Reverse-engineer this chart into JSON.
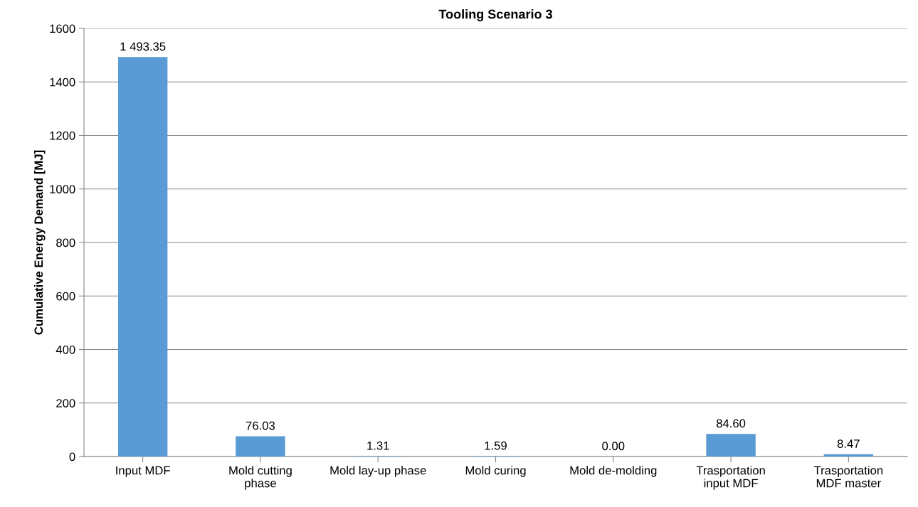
{
  "chart_data": {
    "type": "bar",
    "title": "Tooling Scenario 3",
    "ylabel": "Cumulative Energy Demand [MJ]",
    "categories": [
      "Input MDF",
      "Mold cutting\nphase",
      "Mold lay-up phase",
      "Mold curing",
      "Mold de-molding",
      "Trasportation\ninput MDF",
      "Trasportation\nMDF master"
    ],
    "values": [
      1493.35,
      76.03,
      1.31,
      1.59,
      0.0,
      84.6,
      8.47
    ],
    "value_labels": [
      "1 493.35",
      "76.03",
      "1.31",
      "1.59",
      "0.00",
      "84.60",
      "8.47"
    ],
    "color": "#5b9bd5",
    "ylim": [
      0,
      1600
    ],
    "yticks": [
      0,
      200,
      400,
      600,
      800,
      1000,
      1200,
      1400,
      1600
    ],
    "grid": "y"
  }
}
